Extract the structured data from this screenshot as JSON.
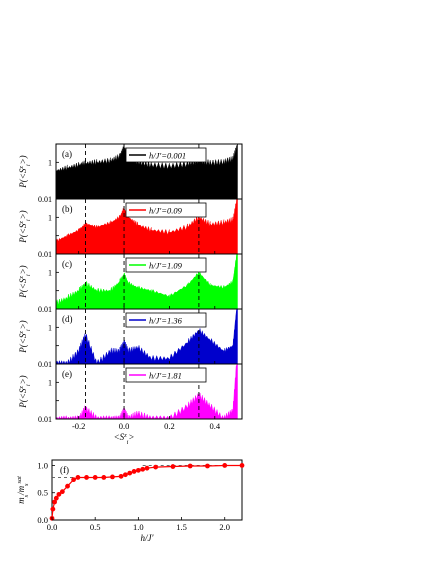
{
  "chart_data": [
    {
      "type": "area",
      "panel": "(a)",
      "legend": "h/J'=0.001",
      "color": "#000000",
      "ylabel": "P(<S^z_i>)",
      "yscale": "log",
      "ylim": [
        0.01,
        10
      ],
      "yticks": [
        "1",
        "0.01"
      ],
      "x": [
        -0.3,
        -0.25,
        -0.2,
        -0.17,
        -0.12,
        -0.06,
        -0.02,
        0.0,
        0.02,
        0.06,
        0.12,
        0.2,
        0.28,
        0.33,
        0.38,
        0.44,
        0.48,
        0.5
      ],
      "values": [
        0.35,
        0.5,
        0.7,
        0.9,
        1.0,
        1.2,
        2.0,
        6.0,
        2.0,
        1.0,
        0.7,
        0.6,
        0.8,
        1.2,
        0.9,
        1.0,
        1.5,
        8.0
      ]
    },
    {
      "type": "area",
      "panel": "(b)",
      "legend": "h/J'=0.09",
      "color": "#ff0000",
      "ylabel": "P(<S^z_i>)",
      "yscale": "log",
      "ylim": [
        0.01,
        10
      ],
      "yticks": [
        "1",
        "0.01"
      ],
      "x": [
        -0.3,
        -0.25,
        -0.2,
        -0.17,
        -0.12,
        -0.06,
        -0.02,
        0.0,
        0.02,
        0.06,
        0.12,
        0.2,
        0.28,
        0.33,
        0.38,
        0.44,
        0.48,
        0.5
      ],
      "values": [
        0.05,
        0.1,
        0.2,
        0.45,
        0.3,
        0.5,
        1.0,
        3.0,
        1.0,
        0.4,
        0.2,
        0.15,
        0.3,
        1.0,
        0.4,
        0.5,
        0.7,
        12.0
      ]
    },
    {
      "type": "area",
      "panel": "(c)",
      "legend": "h/J'=1.09",
      "color": "#00ff00",
      "ylabel": "P(<S^z_i>)",
      "yscale": "log",
      "ylim": [
        0.01,
        10
      ],
      "yticks": [
        "1",
        "0.01"
      ],
      "x": [
        -0.3,
        -0.25,
        -0.2,
        -0.17,
        -0.12,
        -0.06,
        -0.02,
        0.0,
        0.02,
        0.06,
        0.12,
        0.2,
        0.28,
        0.33,
        0.38,
        0.44,
        0.48,
        0.5
      ],
      "values": [
        0.02,
        0.04,
        0.1,
        0.25,
        0.1,
        0.1,
        0.3,
        0.8,
        0.25,
        0.15,
        0.1,
        0.05,
        0.2,
        1.0,
        0.2,
        0.15,
        0.3,
        20.0
      ]
    },
    {
      "type": "area",
      "panel": "(d)",
      "legend": "h/J'=1.36",
      "color": "#0000cc",
      "ylabel": "P(<S^z_i>)",
      "yscale": "log",
      "ylim": [
        0.01,
        10
      ],
      "yticks": [
        "1",
        "0.01"
      ],
      "x": [
        -0.3,
        -0.25,
        -0.2,
        -0.17,
        -0.12,
        -0.06,
        -0.02,
        0.0,
        0.02,
        0.06,
        0.12,
        0.2,
        0.28,
        0.33,
        0.38,
        0.44,
        0.48,
        0.5
      ],
      "values": [
        0.01,
        0.01,
        0.05,
        0.4,
        0.01,
        0.05,
        0.05,
        0.15,
        0.05,
        0.08,
        0.02,
        0.02,
        0.15,
        0.7,
        0.2,
        0.05,
        0.1,
        30.0
      ]
    },
    {
      "type": "area",
      "panel": "(e)",
      "legend": "h/J'=1.81",
      "color": "#ff00ff",
      "ylabel": "P(<S^z_i>)",
      "yscale": "log",
      "ylim": [
        0.01,
        10
      ],
      "yticks": [
        "1",
        "0.01"
      ],
      "xlabel": "<S^z_i>",
      "xticks": [
        "-0.2",
        "0.0",
        "0.2",
        "0.4"
      ],
      "xlim": [
        -0.3,
        0.52
      ],
      "x": [
        -0.3,
        -0.25,
        -0.2,
        -0.17,
        -0.12,
        -0.06,
        -0.02,
        0.0,
        0.02,
        0.06,
        0.12,
        0.2,
        0.28,
        0.33,
        0.38,
        0.44,
        0.48,
        0.5
      ],
      "values": [
        0.01,
        0.01,
        0.01,
        0.04,
        0.01,
        0.01,
        0.01,
        0.03,
        0.01,
        0.02,
        0.01,
        0.01,
        0.05,
        0.2,
        0.05,
        0.01,
        0.03,
        50.0
      ]
    },
    {
      "type": "line",
      "panel": "(f)",
      "color": "#ff0000",
      "xlabel": "h/J'",
      "ylabel": "m_s/m_s^sat",
      "xlim": [
        0,
        2.2
      ],
      "ylim": [
        0,
        1.1
      ],
      "xticks": [
        "0.0",
        "0.5",
        "1.0",
        "1.5",
        "2.0"
      ],
      "yticks": [
        "0.0",
        "0.5",
        "1.0"
      ],
      "plateau": 0.78,
      "x": [
        0.0,
        0.01,
        0.03,
        0.05,
        0.08,
        0.12,
        0.18,
        0.25,
        0.3,
        0.4,
        0.5,
        0.6,
        0.7,
        0.8,
        0.85,
        0.9,
        0.95,
        1.0,
        1.05,
        1.1,
        1.2,
        1.4,
        1.6,
        1.8,
        2.0,
        2.2
      ],
      "values": [
        0.03,
        0.2,
        0.33,
        0.4,
        0.47,
        0.52,
        0.62,
        0.74,
        0.78,
        0.78,
        0.78,
        0.78,
        0.79,
        0.8,
        0.83,
        0.86,
        0.89,
        0.91,
        0.93,
        0.95,
        0.97,
        0.98,
        0.99,
        0.99,
        1.0,
        1.0
      ]
    }
  ]
}
